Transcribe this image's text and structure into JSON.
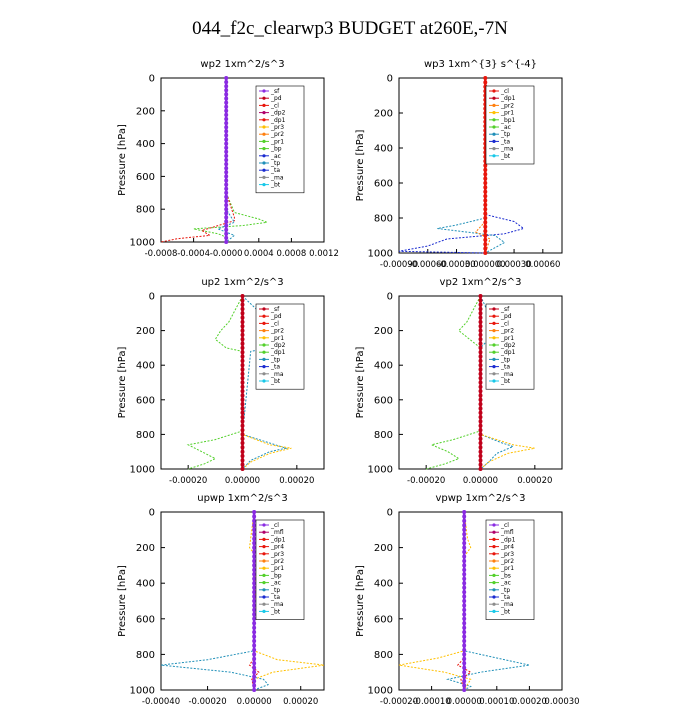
{
  "figure": {
    "suptitle": "044_f2c_clearwp3  BUDGET at260E,-7N"
  },
  "colors": {
    "red": "#e8160c",
    "darkred": "#c0001a",
    "orange": "#ff7f0e",
    "gold": "#ffc000",
    "green": "#52d02a",
    "blue": "#1a2bd0",
    "teal": "#1f8fb8",
    "cyan": "#18c8e8",
    "purple": "#8a2be2",
    "magenta": "#b0006a",
    "gray": "#8c8c8c"
  },
  "chart_data": [
    {
      "type": "line",
      "title": "wp2   1xm^2/s^3",
      "ylabel": "Pressure [hPa]",
      "ylim": [
        1000,
        0
      ],
      "xlim": [
        -0.0008,
        0.0012
      ],
      "xticks": [
        -0.0008,
        -0.0004,
        0.0,
        0.0004,
        0.0008,
        0.0012
      ],
      "xticklabels": [
        "-0.0008",
        "-0.0004",
        "-0.0000",
        "0.0004",
        "0.0008",
        "0.0012"
      ],
      "yticks": [
        0,
        200,
        400,
        600,
        800,
        1000
      ],
      "legend": [
        "_sf",
        "_pd",
        "_cl",
        "_dp2",
        "_dp1",
        "_pr3",
        "_pr2",
        "_pr1",
        "_bp",
        "_ac",
        "_tp",
        "_ta",
        "_ma",
        "_bt"
      ],
      "legend_colors": [
        "purple",
        "darkred",
        "red",
        "magenta",
        "red",
        "gold",
        "orange",
        "green",
        "green",
        "blue",
        "teal",
        "blue",
        "gray",
        "cyan"
      ],
      "series": [
        {
          "color": "green",
          "pressure": [
            0,
            180,
            220,
            700,
            820,
            860,
            880,
            900,
            920,
            950,
            970,
            1000
          ],
          "values": [
            0,
            0,
            0,
            0,
            0.0001,
            0.0004,
            0.0005,
            0.0002,
            -0.0004,
            -0.0001,
            0.0,
            0.0
          ]
        },
        {
          "color": "red",
          "pressure": [
            0,
            700,
            850,
            870,
            900,
            930,
            960,
            980,
            1000
          ],
          "values": [
            0,
            0,
            0.0001,
            0.0001,
            -0.0001,
            -0.0003,
            -0.0002,
            -0.0006,
            -0.0008
          ]
        },
        {
          "color": "teal",
          "pressure": [
            0,
            800,
            880,
            920,
            960,
            1000
          ],
          "values": [
            0,
            0,
            0.0001,
            -0.0001,
            0.0001,
            0
          ]
        },
        {
          "color": "purple",
          "pressure": [
            0,
            1000
          ],
          "values": [
            0,
            0
          ]
        }
      ]
    },
    {
      "type": "line",
      "title": "wp3   1xm^{3} s^{-4}",
      "ylabel": "Pressure [hPa]",
      "ylim": [
        1000,
        0
      ],
      "xlim": [
        -0.0009,
        0.0008
      ],
      "xticks": [
        -0.0009,
        -0.0006,
        -0.0003,
        0.0,
        0.0003,
        0.0006
      ],
      "xticklabels": [
        "-0.00090",
        "-0.00060",
        "-0.00030",
        "0.000000",
        "0.00030",
        "0.00060"
      ],
      "yticks": [
        0,
        200,
        400,
        600,
        800,
        1000
      ],
      "legend": [
        "_cl",
        "_dp1",
        "_pr2",
        "_pr1",
        "_bp1",
        "_ac",
        "_tp",
        "_ta",
        "_ma",
        "_bt"
      ],
      "legend_colors": [
        "red",
        "darkred",
        "orange",
        "gold",
        "green",
        "green",
        "teal",
        "blue",
        "gray",
        "cyan"
      ],
      "series": [
        {
          "color": "blue",
          "pressure": [
            0,
            780,
            820,
            860,
            890,
            920,
            960,
            990,
            1000
          ],
          "values": [
            0,
            0,
            0.0003,
            0.0004,
            0.0002,
            -0.0004,
            -0.0006,
            -0.0009,
            0.0
          ]
        },
        {
          "color": "teal",
          "pressure": [
            0,
            800,
            840,
            860,
            900,
            940,
            1000
          ],
          "values": [
            0,
            0,
            -0.0003,
            -0.0005,
            0.0001,
            0.0002,
            0
          ]
        },
        {
          "color": "orange",
          "pressure": [
            0,
            820,
            880,
            920,
            1000
          ],
          "values": [
            0,
            0,
            -0.0001,
            5e-05,
            0
          ]
        },
        {
          "color": "red",
          "pressure": [
            0,
            1000
          ],
          "values": [
            0,
            0
          ]
        }
      ]
    },
    {
      "type": "line",
      "title": "up2   1xm^2/s^3",
      "ylabel": "Pressure [hPa]",
      "ylim": [
        1000,
        0
      ],
      "xlim": [
        -0.0003,
        0.0003
      ],
      "xticks": [
        -0.0002,
        0.0,
        0.0002
      ],
      "xticklabels": [
        "-0.00020",
        "0.00000",
        "0.00020"
      ],
      "yticks": [
        0,
        200,
        400,
        600,
        800,
        1000
      ],
      "legend": [
        "_sf",
        "_pd",
        "_cl",
        "_pr2",
        "_pr1",
        "_dp2",
        "_dp1",
        "_tp",
        "_ta",
        "_ma",
        "_bt"
      ],
      "legend_colors": [
        "darkred",
        "red",
        "red",
        "orange",
        "gold",
        "green",
        "green",
        "teal",
        "blue",
        "gray",
        "cyan"
      ],
      "series": [
        {
          "color": "teal",
          "pressure": [
            0,
            150,
            200,
            250,
            300,
            320,
            800,
            850,
            880,
            900,
            950,
            1000
          ],
          "values": [
            0,
            0.0001,
            0.00012,
            0.00015,
            0.0001,
            3e-05,
            0.0,
            0.0001,
            0.00016,
            0.0001,
            3e-05,
            0
          ]
        },
        {
          "color": "green",
          "pressure": [
            0,
            150,
            200,
            250,
            300,
            320,
            780,
            830,
            860,
            900,
            940,
            970,
            1000
          ],
          "values": [
            0,
            -5e-05,
            -8e-05,
            -0.0001,
            -6e-05,
            0,
            0,
            -0.0001,
            -0.0002,
            -0.00015,
            -0.0001,
            -0.00014,
            -0.0002
          ]
        },
        {
          "color": "gold",
          "pressure": [
            0,
            800,
            860,
            880,
            910,
            960,
            1000
          ],
          "values": [
            0,
            0,
            0.0001,
            0.00018,
            0.0001,
            3e-05,
            0
          ]
        },
        {
          "color": "darkred",
          "pressure": [
            0,
            1000
          ],
          "values": [
            0,
            0
          ]
        }
      ]
    },
    {
      "type": "line",
      "title": "vp2   1xm^2/s^3",
      "ylabel": "Pressure [hPa]",
      "ylim": [
        1000,
        0
      ],
      "xlim": [
        -0.0003,
        0.0003
      ],
      "xticks": [
        -0.0002,
        0.0,
        0.0002
      ],
      "xticklabels": [
        "-0.00020",
        "0.00000",
        "0.00020"
      ],
      "yticks": [
        0,
        200,
        400,
        600,
        800,
        1000
      ],
      "legend": [
        "_sf",
        "_pd",
        "_cl",
        "_pr2",
        "_pr1",
        "_dp2",
        "_dp1",
        "_tp",
        "_ta",
        "_ma",
        "_bt"
      ],
      "legend_colors": [
        "darkred",
        "red",
        "red",
        "orange",
        "gold",
        "green",
        "green",
        "teal",
        "blue",
        "gray",
        "cyan"
      ],
      "series": [
        {
          "color": "teal",
          "pressure": [
            0,
            100,
            150,
            200,
            250,
            300,
            800,
            850,
            870,
            910,
            960,
            1000
          ],
          "values": [
            0,
            3e-05,
            5e-05,
            4e-05,
            3e-05,
            0,
            0.0,
            8e-05,
            0.00012,
            6e-05,
            3e-05,
            0
          ]
        },
        {
          "color": "green",
          "pressure": [
            0,
            150,
            200,
            250,
            300,
            780,
            830,
            860,
            900,
            940,
            970,
            1000
          ],
          "values": [
            0,
            -5e-05,
            -8e-05,
            -4e-05,
            0,
            0,
            -0.0001,
            -0.00018,
            -0.00012,
            -8e-05,
            -0.00013,
            -0.0002
          ]
        },
        {
          "color": "gold",
          "pressure": [
            0,
            800,
            860,
            880,
            910,
            960,
            1000
          ],
          "values": [
            0,
            0,
            0.00012,
            0.0002,
            0.0001,
            3e-05,
            0
          ]
        },
        {
          "color": "darkred",
          "pressure": [
            0,
            1000
          ],
          "values": [
            0,
            0
          ]
        }
      ]
    },
    {
      "type": "line",
      "title": "upwp   1xm^2/s^3",
      "ylabel": "Pressure [hPa]",
      "ylim": [
        1000,
        0
      ],
      "xlim": [
        -0.0004,
        0.0003
      ],
      "xticks": [
        -0.0004,
        -0.0002,
        0.0,
        0.0002
      ],
      "xticklabels": [
        "-0.00040",
        "-0.00020",
        "0.00000",
        "0.00020"
      ],
      "yticks": [
        0,
        200,
        400,
        600,
        800,
        1000
      ],
      "legend": [
        "_cl",
        "_mfl",
        "_dp1",
        "_pr4",
        "_pr3",
        "_pr2",
        "_pr1",
        "_bp",
        "_ac",
        "_tp",
        "_ta",
        "_ma",
        "_bt"
      ],
      "legend_colors": [
        "purple",
        "magenta",
        "red",
        "red",
        "red",
        "orange",
        "gold",
        "green",
        "green",
        "teal",
        "blue",
        "gray",
        "cyan"
      ],
      "series": [
        {
          "color": "teal",
          "pressure": [
            0,
            780,
            830,
            860,
            900,
            940,
            970,
            1000
          ],
          "values": [
            0,
            0,
            -0.0002,
            -0.0004,
            -0.0001,
            4e-05,
            6e-05,
            0
          ]
        },
        {
          "color": "gold",
          "pressure": [
            0,
            200,
            250,
            780,
            830,
            860,
            900,
            940,
            1000
          ],
          "values": [
            0,
            -2e-05,
            1e-05,
            0,
            0.0001,
            0.0003,
            8e-05,
            0.0,
            0
          ]
        },
        {
          "color": "red",
          "pressure": [
            0,
            820,
            860,
            900,
            940,
            1000
          ],
          "values": [
            0,
            0,
            -2e-05,
            2e-05,
            -1e-05,
            0
          ]
        },
        {
          "color": "purple",
          "pressure": [
            0,
            1000
          ],
          "values": [
            0,
            0
          ]
        }
      ]
    },
    {
      "type": "line",
      "title": "vpwp   1xm^2/s^3",
      "ylabel": "Pressure [hPa]",
      "ylim": [
        1000,
        0
      ],
      "xlim": [
        -0.0002,
        0.0003
      ],
      "xticks": [
        -0.0002,
        -0.0001,
        0.0,
        0.0001,
        0.0002,
        0.0003
      ],
      "xticklabels": [
        "-0.00020",
        "-0.00010",
        "0.00000",
        "0.00010",
        "0.00020",
        "0.00030"
      ],
      "yticks": [
        0,
        200,
        400,
        600,
        800,
        1000
      ],
      "legend": [
        "_cl",
        "_mfl",
        "_dp1",
        "_pr4",
        "_pr3",
        "_pr2",
        "_pr1",
        "_bs",
        "_ac",
        "_tp",
        "_ta",
        "_ma",
        "_bt"
      ],
      "legend_colors": [
        "purple",
        "magenta",
        "red",
        "red",
        "red",
        "orange",
        "gold",
        "green",
        "green",
        "teal",
        "blue",
        "gray",
        "cyan"
      ],
      "series": [
        {
          "color": "teal",
          "pressure": [
            0,
            780,
            820,
            860,
            900,
            940,
            980,
            1000
          ],
          "values": [
            0,
            0,
            0.0001,
            0.0002,
            5e-05,
            -5e-05,
            2e-05,
            0
          ]
        },
        {
          "color": "gold",
          "pressure": [
            0,
            150,
            200,
            250,
            780,
            820,
            860,
            900,
            940,
            1000
          ],
          "values": [
            0,
            1e-05,
            2e-05,
            0.0,
            0,
            -8e-05,
            -0.0002,
            -6e-05,
            2e-05,
            0
          ]
        },
        {
          "color": "red",
          "pressure": [
            0,
            820,
            860,
            900,
            940,
            1000
          ],
          "values": [
            0,
            0,
            -2e-05,
            2e-05,
            -1e-05,
            0
          ]
        },
        {
          "color": "purple",
          "pressure": [
            0,
            1000
          ],
          "values": [
            0,
            0
          ]
        }
      ]
    }
  ]
}
